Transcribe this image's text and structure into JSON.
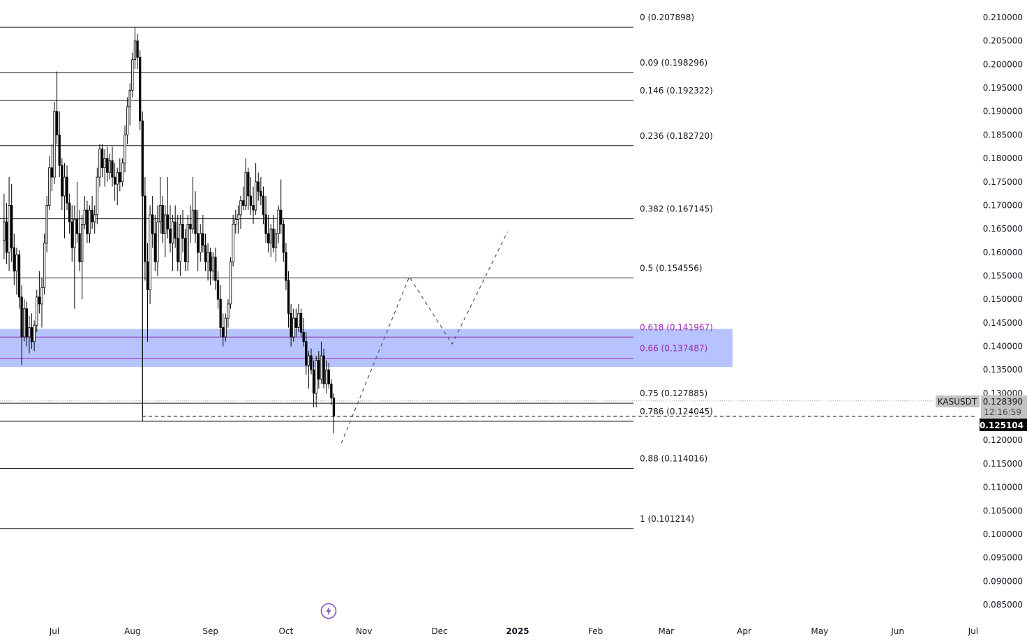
{
  "symbol": "KASUSDT",
  "last_price_tag": "0.128390",
  "countdown": "12:16:59",
  "cursor_price": "0.125104",
  "colors": {
    "fib_line": "#131722",
    "fib_zone_fill": "#a9b9ff",
    "fib_zone_line": "#9c27b0",
    "candle_up": "#ffffff",
    "candle_down": "#000000",
    "wick": "#000000",
    "scale_text": "#131722",
    "symbol_tag_bg": "#c2c2c2",
    "cursor_tag_bg": "#000000"
  },
  "icons": {
    "dock": "lightning-bolt-icon"
  },
  "chart_data": {
    "type": "candlestick",
    "title": "",
    "xlabel": "",
    "ylabel": "",
    "ylim": [
      0.0825,
      0.2125
    ],
    "y_ticks": [
      "0.210000",
      "0.205000",
      "0.200000",
      "0.195000",
      "0.190000",
      "0.185000",
      "0.180000",
      "0.175000",
      "0.170000",
      "0.165000",
      "0.160000",
      "0.155000",
      "0.150000",
      "0.145000",
      "0.140000",
      "0.135000",
      "0.130000",
      "0.120000",
      "0.115000",
      "0.110000",
      "0.105000",
      "0.100000",
      "0.095000",
      "0.090000",
      "0.085000"
    ],
    "x_ticks": [
      "Jul",
      "Aug",
      "Sep",
      "Oct",
      "Nov",
      "Dec",
      "2025",
      "Feb",
      "Mar",
      "Apr",
      "May",
      "Jun",
      "Jul"
    ],
    "x_range": [
      "2024-06-11",
      "2025-07-01"
    ],
    "grid": false,
    "fib_levels": [
      {
        "label": "0 (0.207898)",
        "ratio": 0,
        "price": 0.207898
      },
      {
        "label": "0.09 (0.198296)",
        "ratio": 0.09,
        "price": 0.198296
      },
      {
        "label": "0.146 (0.192322)",
        "ratio": 0.146,
        "price": 0.192322
      },
      {
        "label": "0.236 (0.182720)",
        "ratio": 0.236,
        "price": 0.18272
      },
      {
        "label": "0.382 (0.167145)",
        "ratio": 0.382,
        "price": 0.167145
      },
      {
        "label": "0.5 (0.154556)",
        "ratio": 0.5,
        "price": 0.154556
      },
      {
        "label": "0.618 (0.141967)",
        "ratio": 0.618,
        "price": 0.141967,
        "highlight": true
      },
      {
        "label": "0.66 (0.137487)",
        "ratio": 0.66,
        "price": 0.137487,
        "highlight": true
      },
      {
        "label": "0.75 (0.127885)",
        "ratio": 0.75,
        "price": 0.127885
      },
      {
        "label": "0.786 (0.124045)",
        "ratio": 0.786,
        "price": 0.124045
      },
      {
        "label": "0.88 (0.114016)",
        "ratio": 0.88,
        "price": 0.114016
      },
      {
        "label": "1 (0.101214)",
        "ratio": 1,
        "price": 0.101214
      }
    ],
    "zone": {
      "top": 0.1437,
      "bottom": 0.1356
    },
    "current_price": 0.12839,
    "cursor_price_value": 0.125104,
    "projection_path": [
      {
        "date": "2024-10-23",
        "price": 0.1194
      },
      {
        "date": "2024-11-19",
        "price": 0.1548
      },
      {
        "date": "2024-12-06",
        "price": 0.1405
      },
      {
        "date": "2024-12-28",
        "price": 0.1644
      }
    ],
    "candles": [
      {
        "date": "2024-06-11",
        "o": 0.1625,
        "h": 0.1725,
        "l": 0.1585,
        "c": 0.1665
      },
      {
        "date": "2024-06-12",
        "o": 0.1665,
        "h": 0.1705,
        "l": 0.1575,
        "c": 0.16
      },
      {
        "date": "2024-06-13",
        "o": 0.16,
        "h": 0.176,
        "l": 0.156,
        "c": 0.17
      },
      {
        "date": "2024-06-14",
        "o": 0.17,
        "h": 0.1745,
        "l": 0.158,
        "c": 0.161
      },
      {
        "date": "2024-06-15",
        "o": 0.161,
        "h": 0.164,
        "l": 0.153,
        "c": 0.156
      },
      {
        "date": "2024-06-16",
        "o": 0.156,
        "h": 0.161,
        "l": 0.151,
        "c": 0.1595
      },
      {
        "date": "2024-06-17",
        "o": 0.1595,
        "h": 0.1605,
        "l": 0.148,
        "c": 0.1505
      },
      {
        "date": "2024-06-18",
        "o": 0.1505,
        "h": 0.153,
        "l": 0.136,
        "c": 0.142
      },
      {
        "date": "2024-06-19",
        "o": 0.142,
        "h": 0.15,
        "l": 0.141,
        "c": 0.148
      },
      {
        "date": "2024-06-20",
        "o": 0.148,
        "h": 0.1495,
        "l": 0.14,
        "c": 0.142
      },
      {
        "date": "2024-06-21",
        "o": 0.142,
        "h": 0.1465,
        "l": 0.1385,
        "c": 0.144
      },
      {
        "date": "2024-06-22",
        "o": 0.144,
        "h": 0.147,
        "l": 0.1395,
        "c": 0.141
      },
      {
        "date": "2024-06-23",
        "o": 0.141,
        "h": 0.1455,
        "l": 0.139,
        "c": 0.1445
      },
      {
        "date": "2024-06-24",
        "o": 0.1445,
        "h": 0.152,
        "l": 0.143,
        "c": 0.1505
      },
      {
        "date": "2024-06-25",
        "o": 0.1505,
        "h": 0.156,
        "l": 0.147,
        "c": 0.149
      },
      {
        "date": "2024-06-26",
        "o": 0.149,
        "h": 0.1545,
        "l": 0.144,
        "c": 0.1525
      },
      {
        "date": "2024-06-27",
        "o": 0.1525,
        "h": 0.164,
        "l": 0.151,
        "c": 0.162
      },
      {
        "date": "2024-06-28",
        "o": 0.162,
        "h": 0.172,
        "l": 0.16,
        "c": 0.17
      },
      {
        "date": "2024-06-29",
        "o": 0.17,
        "h": 0.1805,
        "l": 0.169,
        "c": 0.178
      },
      {
        "date": "2024-06-30",
        "o": 0.178,
        "h": 0.183,
        "l": 0.173,
        "c": 0.176
      },
      {
        "date": "2024-07-01",
        "o": 0.176,
        "h": 0.192,
        "l": 0.1745,
        "c": 0.19
      },
      {
        "date": "2024-07-02",
        "o": 0.19,
        "h": 0.1985,
        "l": 0.183,
        "c": 0.185
      },
      {
        "date": "2024-07-03",
        "o": 0.185,
        "h": 0.19,
        "l": 0.176,
        "c": 0.1785
      },
      {
        "date": "2024-07-04",
        "o": 0.1785,
        "h": 0.18,
        "l": 0.169,
        "c": 0.172
      },
      {
        "date": "2024-07-05",
        "o": 0.172,
        "h": 0.179,
        "l": 0.163,
        "c": 0.176
      },
      {
        "date": "2024-07-06",
        "o": 0.176,
        "h": 0.1785,
        "l": 0.169,
        "c": 0.1705
      },
      {
        "date": "2024-07-07",
        "o": 0.1705,
        "h": 0.1725,
        "l": 0.164,
        "c": 0.1665
      },
      {
        "date": "2024-07-08",
        "o": 0.1665,
        "h": 0.17,
        "l": 0.158,
        "c": 0.161
      },
      {
        "date": "2024-07-09",
        "o": 0.161,
        "h": 0.17,
        "l": 0.148,
        "c": 0.167
      },
      {
        "date": "2024-07-10",
        "o": 0.167,
        "h": 0.175,
        "l": 0.162,
        "c": 0.164
      },
      {
        "date": "2024-07-11",
        "o": 0.164,
        "h": 0.169,
        "l": 0.156,
        "c": 0.158
      },
      {
        "date": "2024-07-12",
        "o": 0.158,
        "h": 0.168,
        "l": 0.15,
        "c": 0.166
      },
      {
        "date": "2024-07-13",
        "o": 0.166,
        "h": 0.172,
        "l": 0.165,
        "c": 0.169
      },
      {
        "date": "2024-07-14",
        "o": 0.169,
        "h": 0.171,
        "l": 0.162,
        "c": 0.164
      },
      {
        "date": "2024-07-15",
        "o": 0.164,
        "h": 0.17,
        "l": 0.162,
        "c": 0.169
      },
      {
        "date": "2024-07-16",
        "o": 0.169,
        "h": 0.172,
        "l": 0.165,
        "c": 0.1665
      },
      {
        "date": "2024-07-17",
        "o": 0.1665,
        "h": 0.17,
        "l": 0.164,
        "c": 0.168
      },
      {
        "date": "2024-07-18",
        "o": 0.168,
        "h": 0.178,
        "l": 0.166,
        "c": 0.176
      },
      {
        "date": "2024-07-19",
        "o": 0.176,
        "h": 0.183,
        "l": 0.174,
        "c": 0.182
      },
      {
        "date": "2024-07-20",
        "o": 0.182,
        "h": 0.183,
        "l": 0.176,
        "c": 0.178
      },
      {
        "date": "2024-07-21",
        "o": 0.178,
        "h": 0.182,
        "l": 0.174,
        "c": 0.18
      },
      {
        "date": "2024-07-22",
        "o": 0.18,
        "h": 0.1825,
        "l": 0.175,
        "c": 0.177
      },
      {
        "date": "2024-07-23",
        "o": 0.177,
        "h": 0.181,
        "l": 0.1755,
        "c": 0.1795
      },
      {
        "date": "2024-07-24",
        "o": 0.1795,
        "h": 0.1825,
        "l": 0.174,
        "c": 0.176
      },
      {
        "date": "2024-07-25",
        "o": 0.176,
        "h": 0.179,
        "l": 0.171,
        "c": 0.1745
      },
      {
        "date": "2024-07-26",
        "o": 0.1745,
        "h": 0.178,
        "l": 0.17,
        "c": 0.177
      },
      {
        "date": "2024-07-27",
        "o": 0.177,
        "h": 0.18,
        "l": 0.173,
        "c": 0.175
      },
      {
        "date": "2024-07-28",
        "o": 0.175,
        "h": 0.18,
        "l": 0.174,
        "c": 0.179
      },
      {
        "date": "2024-07-29",
        "o": 0.179,
        "h": 0.187,
        "l": 0.177,
        "c": 0.185
      },
      {
        "date": "2024-07-30",
        "o": 0.185,
        "h": 0.193,
        "l": 0.183,
        "c": 0.191
      },
      {
        "date": "2024-07-31",
        "o": 0.191,
        "h": 0.196,
        "l": 0.187,
        "c": 0.1945
      },
      {
        "date": "2024-08-01",
        "o": 0.1945,
        "h": 0.2025,
        "l": 0.193,
        "c": 0.201
      },
      {
        "date": "2024-08-02",
        "o": 0.201,
        "h": 0.2079,
        "l": 0.199,
        "c": 0.205
      },
      {
        "date": "2024-08-03",
        "o": 0.205,
        "h": 0.2065,
        "l": 0.199,
        "c": 0.2015
      },
      {
        "date": "2024-08-04",
        "o": 0.2015,
        "h": 0.203,
        "l": 0.186,
        "c": 0.188
      },
      {
        "date": "2024-08-05",
        "o": 0.188,
        "h": 0.19,
        "l": 0.124,
        "c": 0.172
      },
      {
        "date": "2024-08-06",
        "o": 0.172,
        "h": 0.176,
        "l": 0.154,
        "c": 0.158
      },
      {
        "date": "2024-08-07",
        "o": 0.158,
        "h": 0.162,
        "l": 0.141,
        "c": 0.152
      },
      {
        "date": "2024-08-08",
        "o": 0.152,
        "h": 0.17,
        "l": 0.149,
        "c": 0.168
      },
      {
        "date": "2024-08-09",
        "o": 0.168,
        "h": 0.172,
        "l": 0.161,
        "c": 0.164
      },
      {
        "date": "2024-08-10",
        "o": 0.164,
        "h": 0.168,
        "l": 0.156,
        "c": 0.158
      },
      {
        "date": "2024-08-11",
        "o": 0.158,
        "h": 0.17,
        "l": 0.155,
        "c": 0.1665
      },
      {
        "date": "2024-08-12",
        "o": 0.1665,
        "h": 0.176,
        "l": 0.164,
        "c": 0.17
      },
      {
        "date": "2024-08-13",
        "o": 0.17,
        "h": 0.172,
        "l": 0.162,
        "c": 0.164
      },
      {
        "date": "2024-08-14",
        "o": 0.164,
        "h": 0.17,
        "l": 0.159,
        "c": 0.168
      },
      {
        "date": "2024-08-15",
        "o": 0.168,
        "h": 0.176,
        "l": 0.163,
        "c": 0.165
      },
      {
        "date": "2024-08-16",
        "o": 0.165,
        "h": 0.17,
        "l": 0.16,
        "c": 0.162
      },
      {
        "date": "2024-08-17",
        "o": 0.162,
        "h": 0.168,
        "l": 0.156,
        "c": 0.1665
      },
      {
        "date": "2024-08-18",
        "o": 0.1665,
        "h": 0.17,
        "l": 0.161,
        "c": 0.163
      },
      {
        "date": "2024-08-19",
        "o": 0.163,
        "h": 0.168,
        "l": 0.156,
        "c": 0.158
      },
      {
        "date": "2024-08-20",
        "o": 0.158,
        "h": 0.168,
        "l": 0.155,
        "c": 0.166
      },
      {
        "date": "2024-08-21",
        "o": 0.166,
        "h": 0.169,
        "l": 0.16,
        "c": 0.163
      },
      {
        "date": "2024-08-22",
        "o": 0.163,
        "h": 0.165,
        "l": 0.156,
        "c": 0.158
      },
      {
        "date": "2024-08-23",
        "o": 0.158,
        "h": 0.168,
        "l": 0.156,
        "c": 0.166
      },
      {
        "date": "2024-08-24",
        "o": 0.166,
        "h": 0.17,
        "l": 0.162,
        "c": 0.165
      },
      {
        "date": "2024-08-25",
        "o": 0.165,
        "h": 0.176,
        "l": 0.164,
        "c": 0.169
      },
      {
        "date": "2024-08-26",
        "o": 0.169,
        "h": 0.173,
        "l": 0.162,
        "c": 0.164
      },
      {
        "date": "2024-08-27",
        "o": 0.164,
        "h": 0.169,
        "l": 0.156,
        "c": 0.16
      },
      {
        "date": "2024-08-28",
        "o": 0.16,
        "h": 0.166,
        "l": 0.158,
        "c": 0.164
      },
      {
        "date": "2024-08-29",
        "o": 0.164,
        "h": 0.168,
        "l": 0.16,
        "c": 0.1615
      },
      {
        "date": "2024-08-30",
        "o": 0.1615,
        "h": 0.164,
        "l": 0.156,
        "c": 0.158
      },
      {
        "date": "2024-08-31",
        "o": 0.158,
        "h": 0.162,
        "l": 0.154,
        "c": 0.16
      },
      {
        "date": "2024-09-01",
        "o": 0.16,
        "h": 0.161,
        "l": 0.153,
        "c": 0.156
      },
      {
        "date": "2024-09-02",
        "o": 0.156,
        "h": 0.16,
        "l": 0.154,
        "c": 0.159
      },
      {
        "date": "2024-09-03",
        "o": 0.159,
        "h": 0.161,
        "l": 0.152,
        "c": 0.154
      },
      {
        "date": "2024-09-04",
        "o": 0.154,
        "h": 0.156,
        "l": 0.148,
        "c": 0.15
      },
      {
        "date": "2024-09-05",
        "o": 0.15,
        "h": 0.153,
        "l": 0.142,
        "c": 0.144
      },
      {
        "date": "2024-09-06",
        "o": 0.144,
        "h": 0.147,
        "l": 0.14,
        "c": 0.142
      },
      {
        "date": "2024-09-07",
        "o": 0.142,
        "h": 0.147,
        "l": 0.141,
        "c": 0.146
      },
      {
        "date": "2024-09-08",
        "o": 0.146,
        "h": 0.15,
        "l": 0.144,
        "c": 0.149
      },
      {
        "date": "2024-09-09",
        "o": 0.149,
        "h": 0.159,
        "l": 0.148,
        "c": 0.158
      },
      {
        "date": "2024-09-10",
        "o": 0.158,
        "h": 0.168,
        "l": 0.157,
        "c": 0.166
      },
      {
        "date": "2024-09-11",
        "o": 0.166,
        "h": 0.169,
        "l": 0.164,
        "c": 0.167
      },
      {
        "date": "2024-09-12",
        "o": 0.167,
        "h": 0.17,
        "l": 0.164,
        "c": 0.168
      },
      {
        "date": "2024-09-13",
        "o": 0.168,
        "h": 0.172,
        "l": 0.165,
        "c": 0.171
      },
      {
        "date": "2024-09-14",
        "o": 0.171,
        "h": 0.174,
        "l": 0.169,
        "c": 0.17
      },
      {
        "date": "2024-09-15",
        "o": 0.17,
        "h": 0.18,
        "l": 0.169,
        "c": 0.177
      },
      {
        "date": "2024-09-16",
        "o": 0.177,
        "h": 0.178,
        "l": 0.169,
        "c": 0.172
      },
      {
        "date": "2024-09-17",
        "o": 0.172,
        "h": 0.176,
        "l": 0.168,
        "c": 0.17
      },
      {
        "date": "2024-09-18",
        "o": 0.17,
        "h": 0.174,
        "l": 0.166,
        "c": 0.169
      },
      {
        "date": "2024-09-19",
        "o": 0.169,
        "h": 0.179,
        "l": 0.168,
        "c": 0.175
      },
      {
        "date": "2024-09-20",
        "o": 0.175,
        "h": 0.177,
        "l": 0.171,
        "c": 0.173
      },
      {
        "date": "2024-09-21",
        "o": 0.173,
        "h": 0.176,
        "l": 0.17,
        "c": 0.172
      },
      {
        "date": "2024-09-22",
        "o": 0.172,
        "h": 0.174,
        "l": 0.166,
        "c": 0.168
      },
      {
        "date": "2024-09-23",
        "o": 0.168,
        "h": 0.172,
        "l": 0.162,
        "c": 0.164
      },
      {
        "date": "2024-09-24",
        "o": 0.164,
        "h": 0.168,
        "l": 0.16,
        "c": 0.162
      },
      {
        "date": "2024-09-25",
        "o": 0.162,
        "h": 0.166,
        "l": 0.159,
        "c": 0.165
      },
      {
        "date": "2024-09-26",
        "o": 0.165,
        "h": 0.168,
        "l": 0.16,
        "c": 0.161
      },
      {
        "date": "2024-09-27",
        "o": 0.161,
        "h": 0.165,
        "l": 0.158,
        "c": 0.164
      },
      {
        "date": "2024-09-28",
        "o": 0.164,
        "h": 0.17,
        "l": 0.162,
        "c": 0.169
      },
      {
        "date": "2024-09-29",
        "o": 0.169,
        "h": 0.1755,
        "l": 0.164,
        "c": 0.166
      },
      {
        "date": "2024-09-30",
        "o": 0.166,
        "h": 0.167,
        "l": 0.158,
        "c": 0.16
      },
      {
        "date": "2024-10-01",
        "o": 0.16,
        "h": 0.162,
        "l": 0.152,
        "c": 0.154
      },
      {
        "date": "2024-10-02",
        "o": 0.154,
        "h": 0.156,
        "l": 0.144,
        "c": 0.147
      },
      {
        "date": "2024-10-03",
        "o": 0.147,
        "h": 0.149,
        "l": 0.14,
        "c": 0.142
      },
      {
        "date": "2024-10-04",
        "o": 0.142,
        "h": 0.148,
        "l": 0.141,
        "c": 0.146
      },
      {
        "date": "2024-10-05",
        "o": 0.146,
        "h": 0.148,
        "l": 0.142,
        "c": 0.144
      },
      {
        "date": "2024-10-06",
        "o": 0.144,
        "h": 0.149,
        "l": 0.143,
        "c": 0.147
      },
      {
        "date": "2024-10-07",
        "o": 0.147,
        "h": 0.148,
        "l": 0.142,
        "c": 0.143
      },
      {
        "date": "2024-10-08",
        "o": 0.143,
        "h": 0.146,
        "l": 0.14,
        "c": 0.141
      },
      {
        "date": "2024-10-09",
        "o": 0.141,
        "h": 0.143,
        "l": 0.134,
        "c": 0.136
      },
      {
        "date": "2024-10-10",
        "o": 0.136,
        "h": 0.139,
        "l": 0.131,
        "c": 0.138
      },
      {
        "date": "2024-10-11",
        "o": 0.138,
        "h": 0.1395,
        "l": 0.134,
        "c": 0.135
      },
      {
        "date": "2024-10-12",
        "o": 0.135,
        "h": 0.137,
        "l": 0.127,
        "c": 0.13
      },
      {
        "date": "2024-10-13",
        "o": 0.13,
        "h": 0.138,
        "l": 0.127,
        "c": 0.137
      },
      {
        "date": "2024-10-14",
        "o": 0.137,
        "h": 0.139,
        "l": 0.131,
        "c": 0.133
      },
      {
        "date": "2024-10-15",
        "o": 0.133,
        "h": 0.141,
        "l": 0.132,
        "c": 0.138
      },
      {
        "date": "2024-10-16",
        "o": 0.138,
        "h": 0.1395,
        "l": 0.131,
        "c": 0.132
      },
      {
        "date": "2024-10-17",
        "o": 0.132,
        "h": 0.137,
        "l": 0.13,
        "c": 0.135
      },
      {
        "date": "2024-10-18",
        "o": 0.135,
        "h": 0.1365,
        "l": 0.131,
        "c": 0.132
      },
      {
        "date": "2024-10-19",
        "o": 0.132,
        "h": 0.133,
        "l": 0.1275,
        "c": 0.129
      },
      {
        "date": "2024-10-20",
        "o": 0.129,
        "h": 0.13,
        "l": 0.1215,
        "c": 0.1251
      }
    ]
  }
}
